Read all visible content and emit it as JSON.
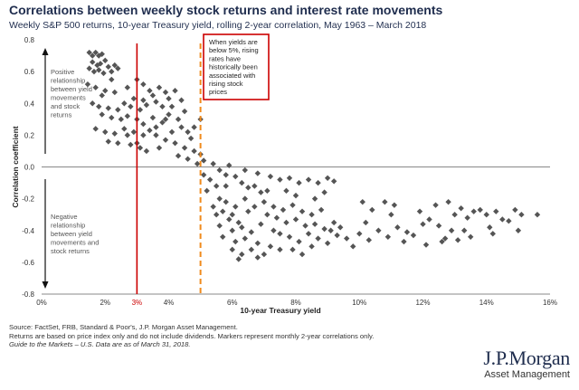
{
  "header": {
    "title": "Correlations between weekly stock returns and interest rate movements",
    "subtitle": "Weekly S&P 500 returns, 10-year Treasury yield, rolling 2-year correlation, May 1963 – March 2018"
  },
  "chart_data": {
    "type": "scatter",
    "xlabel": "10-year Treasury yield",
    "ylabel": "Correlation coefficient",
    "xlim": [
      0,
      16
    ],
    "ylim": [
      -0.8,
      0.8
    ],
    "x_ticks": [
      "0%",
      "2%",
      "4%",
      "6%",
      "8%",
      "10%",
      "12%",
      "14%",
      "16%"
    ],
    "y_ticks": [
      "0.8",
      "0.6",
      "0.4",
      "0.2",
      "0.0",
      "-0.2",
      "-0.4",
      "-0.6",
      "-0.8"
    ],
    "marker_color": "#555555",
    "vline_3pct": {
      "x": 3,
      "label": "3%",
      "color": "#cc0000"
    },
    "vline_5pct": {
      "x": 5,
      "color": "#f08a1c"
    },
    "callout": {
      "lines": [
        "When yields are",
        "below 5%, rising",
        "rates have",
        "historically been",
        "associated with",
        "rising stock",
        "prices"
      ],
      "border_color": "#cc0000"
    },
    "annotation_positive": [
      "Positive",
      "relationship",
      "between yield",
      "movements",
      "and stock",
      "returns"
    ],
    "annotation_negative": [
      "Negative",
      "relationship",
      "between yield",
      "movements and",
      "stock returns"
    ],
    "points": [
      [
        1.5,
        0.72
      ],
      [
        1.6,
        0.7
      ],
      [
        1.7,
        0.72
      ],
      [
        1.8,
        0.7
      ],
      [
        1.9,
        0.71
      ],
      [
        1.6,
        0.66
      ],
      [
        1.75,
        0.64
      ],
      [
        1.85,
        0.65
      ],
      [
        2.0,
        0.67
      ],
      [
        2.1,
        0.63
      ],
      [
        1.5,
        0.62
      ],
      [
        1.65,
        0.6
      ],
      [
        1.8,
        0.61
      ],
      [
        1.95,
        0.59
      ],
      [
        2.2,
        0.6
      ],
      [
        2.3,
        0.64
      ],
      [
        1.45,
        0.52
      ],
      [
        1.7,
        0.5
      ],
      [
        2.0,
        0.48
      ],
      [
        2.3,
        0.47
      ],
      [
        1.6,
        0.4
      ],
      [
        1.8,
        0.38
      ],
      [
        2.1,
        0.37
      ],
      [
        2.4,
        0.36
      ],
      [
        2.6,
        0.4
      ],
      [
        2.8,
        0.38
      ],
      [
        3.1,
        0.36
      ],
      [
        3.3,
        0.39
      ],
      [
        1.9,
        0.33
      ],
      [
        2.2,
        0.31
      ],
      [
        2.5,
        0.3
      ],
      [
        2.7,
        0.32
      ],
      [
        3.0,
        0.3
      ],
      [
        3.2,
        0.27
      ],
      [
        3.5,
        0.31
      ],
      [
        1.7,
        0.24
      ],
      [
        2.0,
        0.22
      ],
      [
        2.3,
        0.21
      ],
      [
        2.6,
        0.24
      ],
      [
        2.9,
        0.22
      ],
      [
        3.2,
        0.2
      ],
      [
        3.4,
        0.23
      ],
      [
        2.1,
        0.16
      ],
      [
        2.4,
        0.15
      ],
      [
        2.8,
        0.14
      ],
      [
        3.1,
        0.12
      ],
      [
        2.7,
        0.5
      ],
      [
        3.0,
        0.55
      ],
      [
        3.2,
        0.52
      ],
      [
        3.4,
        0.48
      ],
      [
        2.9,
        0.43
      ],
      [
        3.2,
        0.42
      ],
      [
        3.5,
        0.45
      ],
      [
        3.7,
        0.5
      ],
      [
        3.9,
        0.47
      ],
      [
        3.6,
        0.41
      ],
      [
        3.8,
        0.38
      ],
      [
        4.0,
        0.43
      ],
      [
        4.2,
        0.48
      ],
      [
        4.1,
        0.38
      ],
      [
        4.0,
        0.33
      ],
      [
        4.3,
        0.3
      ],
      [
        4.5,
        0.35
      ],
      [
        4.4,
        0.25
      ],
      [
        4.6,
        0.22
      ],
      [
        3.8,
        0.28
      ],
      [
        3.6,
        0.2
      ],
      [
        3.9,
        0.17
      ],
      [
        4.2,
        0.15
      ],
      [
        4.5,
        0.12
      ],
      [
        4.7,
        0.18
      ],
      [
        4.8,
        0.1
      ],
      [
        5.0,
        0.08
      ],
      [
        4.9,
        0.02
      ],
      [
        5.1,
        0.04
      ],
      [
        4.6,
        0.05
      ],
      [
        3.9,
        0.3
      ],
      [
        3.6,
        0.25
      ],
      [
        4.4,
        0.42
      ],
      [
        4.1,
        0.22
      ],
      [
        4.8,
        0.25
      ],
      [
        5.0,
        0.3
      ],
      [
        4.3,
        0.07
      ],
      [
        3.3,
        0.1
      ],
      [
        3.7,
        0.12
      ],
      [
        1.9,
        0.45
      ],
      [
        2.2,
        0.55
      ],
      [
        2.4,
        0.62
      ],
      [
        2.7,
        0.2
      ],
      [
        3.0,
        0.15
      ],
      [
        5.1,
        -0.05
      ],
      [
        5.3,
        -0.08
      ],
      [
        5.5,
        -0.12
      ],
      [
        5.2,
        -0.15
      ],
      [
        5.6,
        -0.2
      ],
      [
        5.8,
        -0.22
      ],
      [
        5.4,
        -0.25
      ],
      [
        5.7,
        -0.28
      ],
      [
        6.0,
        -0.3
      ],
      [
        5.5,
        -0.3
      ],
      [
        5.9,
        -0.33
      ],
      [
        6.2,
        -0.35
      ],
      [
        5.6,
        -0.37
      ],
      [
        6.0,
        -0.4
      ],
      [
        6.3,
        -0.38
      ],
      [
        6.6,
        -0.41
      ],
      [
        5.7,
        -0.44
      ],
      [
        6.1,
        -0.47
      ],
      [
        6.4,
        -0.45
      ],
      [
        6.8,
        -0.48
      ],
      [
        6.0,
        -0.52
      ],
      [
        6.3,
        -0.55
      ],
      [
        6.6,
        -0.52
      ],
      [
        7.0,
        -0.55
      ],
      [
        6.2,
        -0.58
      ],
      [
        6.8,
        -0.57
      ],
      [
        7.2,
        -0.5
      ],
      [
        7.5,
        -0.52
      ],
      [
        5.4,
        0.02
      ],
      [
        5.6,
        -0.02
      ],
      [
        5.8,
        -0.05
      ],
      [
        6.1,
        -0.06
      ],
      [
        6.3,
        -0.1
      ],
      [
        6.5,
        -0.13
      ],
      [
        6.7,
        -0.12
      ],
      [
        6.9,
        -0.16
      ],
      [
        7.1,
        -0.15
      ],
      [
        5.9,
        0.01
      ],
      [
        6.4,
        -0.02
      ],
      [
        6.8,
        -0.04
      ],
      [
        7.2,
        -0.06
      ],
      [
        7.5,
        -0.08
      ],
      [
        7.8,
        -0.07
      ],
      [
        8.1,
        -0.1
      ],
      [
        8.4,
        -0.08
      ],
      [
        8.7,
        -0.1
      ],
      [
        9.0,
        -0.07
      ],
      [
        9.2,
        -0.09
      ],
      [
        7.0,
        -0.22
      ],
      [
        7.3,
        -0.25
      ],
      [
        7.6,
        -0.27
      ],
      [
        7.9,
        -0.24
      ],
      [
        8.2,
        -0.28
      ],
      [
        8.5,
        -0.3
      ],
      [
        8.8,
        -0.27
      ],
      [
        7.4,
        -0.32
      ],
      [
        7.7,
        -0.35
      ],
      [
        8.0,
        -0.33
      ],
      [
        8.3,
        -0.37
      ],
      [
        8.6,
        -0.36
      ],
      [
        8.9,
        -0.39
      ],
      [
        9.2,
        -0.35
      ],
      [
        7.5,
        -0.42
      ],
      [
        7.8,
        -0.44
      ],
      [
        8.1,
        -0.47
      ],
      [
        8.4,
        -0.42
      ],
      [
        8.7,
        -0.45
      ],
      [
        9.0,
        -0.48
      ],
      [
        9.3,
        -0.43
      ],
      [
        7.9,
        -0.52
      ],
      [
        8.2,
        -0.55
      ],
      [
        8.5,
        -0.5
      ],
      [
        9.1,
        -0.4
      ],
      [
        9.4,
        -0.38
      ],
      [
        9.6,
        -0.45
      ],
      [
        9.8,
        -0.5
      ],
      [
        6.4,
        -0.2
      ],
      [
        6.7,
        -0.25
      ],
      [
        7.1,
        -0.3
      ],
      [
        7.3,
        -0.4
      ],
      [
        6.5,
        -0.28
      ],
      [
        7.7,
        -0.15
      ],
      [
        8.0,
        -0.18
      ],
      [
        8.6,
        -0.2
      ],
      [
        8.9,
        -0.16
      ],
      [
        6.9,
        -0.36
      ],
      [
        6.1,
        -0.25
      ],
      [
        5.8,
        -0.12
      ],
      [
        10.1,
        -0.22
      ],
      [
        10.4,
        -0.27
      ],
      [
        10.2,
        -0.35
      ],
      [
        10.0,
        -0.42
      ],
      [
        10.3,
        -0.46
      ],
      [
        10.6,
        -0.4
      ],
      [
        10.9,
        -0.44
      ],
      [
        11.2,
        -0.38
      ],
      [
        11.0,
        -0.3
      ],
      [
        10.8,
        -0.22
      ],
      [
        11.4,
        -0.47
      ],
      [
        11.7,
        -0.43
      ],
      [
        12.0,
        -0.36
      ],
      [
        12.2,
        -0.33
      ],
      [
        11.9,
        -0.28
      ],
      [
        12.5,
        -0.37
      ],
      [
        12.7,
        -0.45
      ],
      [
        12.9,
        -0.4
      ],
      [
        12.6,
        -0.47
      ],
      [
        13.0,
        -0.3
      ],
      [
        13.2,
        -0.26
      ],
      [
        13.4,
        -0.32
      ],
      [
        13.6,
        -0.28
      ],
      [
        13.3,
        -0.4
      ],
      [
        12.4,
        -0.24
      ],
      [
        12.8,
        -0.22
      ],
      [
        13.5,
        -0.44
      ],
      [
        13.1,
        -0.46
      ],
      [
        14.0,
        -0.3
      ],
      [
        14.3,
        -0.28
      ],
      [
        13.8,
        -0.27
      ],
      [
        14.5,
        -0.33
      ],
      [
        14.1,
        -0.38
      ],
      [
        14.7,
        -0.34
      ],
      [
        15.1,
        -0.3
      ],
      [
        15.6,
        -0.3
      ],
      [
        15.0,
        -0.4
      ],
      [
        14.9,
        -0.27
      ],
      [
        11.5,
        -0.41
      ],
      [
        12.1,
        -0.49
      ],
      [
        14.2,
        -0.42
      ],
      [
        11.1,
        -0.24
      ]
    ]
  },
  "footnotes": {
    "line1": "Source: FactSet, FRB, Standard & Poor's, J.P. Morgan Asset Management.",
    "line2": "Returns are based on price index only and do not include dividends. Markers represent monthly 2-year correlations only.",
    "line3": "Guide to the Markets – U.S. Data are as of March 31, 2018."
  },
  "logo": {
    "brand": "J.P.Morgan",
    "sub": "Asset Management"
  }
}
